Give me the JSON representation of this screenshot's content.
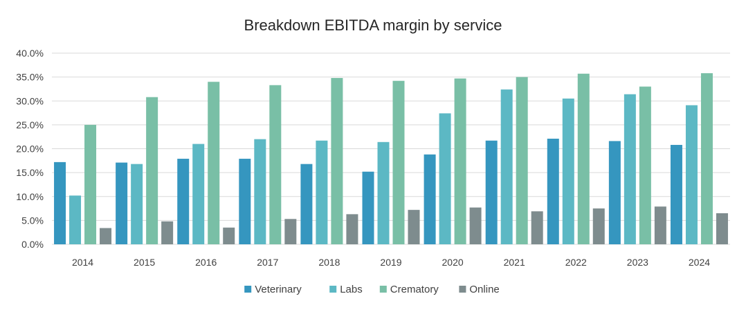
{
  "chart_data": {
    "type": "bar",
    "title": "Breakdown EBITDA margin by service",
    "xlabel": "",
    "ylabel": "",
    "categories": [
      "2014",
      "2015",
      "2016",
      "2017",
      "2018",
      "2019",
      "2020",
      "2021",
      "2022",
      "2023",
      "2024"
    ],
    "series": [
      {
        "name": "Veterinary",
        "color": "#3596BF",
        "values": [
          17.2,
          17.1,
          17.9,
          17.9,
          16.8,
          15.2,
          18.8,
          21.7,
          22.1,
          21.6,
          20.8
        ]
      },
      {
        "name": "Labs",
        "color": "#5CB8C4",
        "values": [
          10.2,
          16.8,
          21.0,
          22.0,
          21.7,
          21.4,
          27.4,
          32.4,
          30.5,
          31.4,
          29.1
        ]
      },
      {
        "name": "Crematory",
        "color": "#79BFA6",
        "values": [
          25.0,
          30.8,
          34.0,
          33.3,
          34.8,
          34.2,
          34.7,
          35.0,
          35.7,
          33.0,
          35.8
        ]
      },
      {
        "name": "Online",
        "color": "#7E8C8E",
        "values": [
          3.4,
          4.8,
          3.5,
          5.3,
          6.3,
          7.2,
          7.7,
          6.9,
          7.5,
          7.9,
          6.5
        ]
      }
    ],
    "ylim": [
      0,
      40
    ],
    "yticks": [
      "0.0%",
      "5.0%",
      "10.0%",
      "15.0%",
      "20.0%",
      "25.0%",
      "30.0%",
      "35.0%",
      "40.0%"
    ],
    "grid": true,
    "gridline_color": "#D9D9D9",
    "legend_position": "bottom"
  }
}
